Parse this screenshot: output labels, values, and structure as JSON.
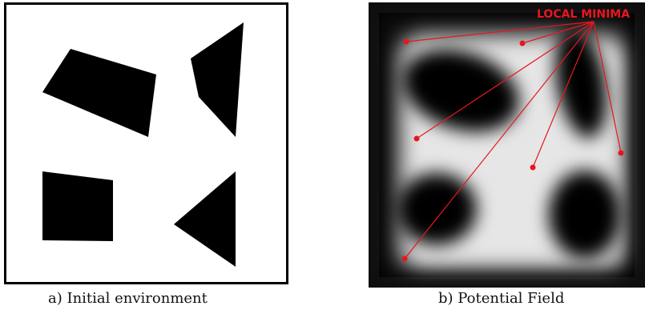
{
  "panel_a": {
    "caption": "a) Initial environment",
    "obstacles": [
      {
        "shape": "quadrilateral",
        "color": "#000000"
      },
      {
        "shape": "quadrilateral",
        "color": "#000000"
      },
      {
        "shape": "square",
        "color": "#000000"
      },
      {
        "shape": "triangle",
        "color": "#000000"
      }
    ],
    "border_color": "#000000"
  },
  "panel_b": {
    "caption": "b) Potential Field",
    "annotation_label": "LOCAL MINIMA",
    "annotation_color": "#e8161f",
    "field_colors": {
      "low": "#000000",
      "high": "#ffffff"
    },
    "minima_count": 7
  }
}
